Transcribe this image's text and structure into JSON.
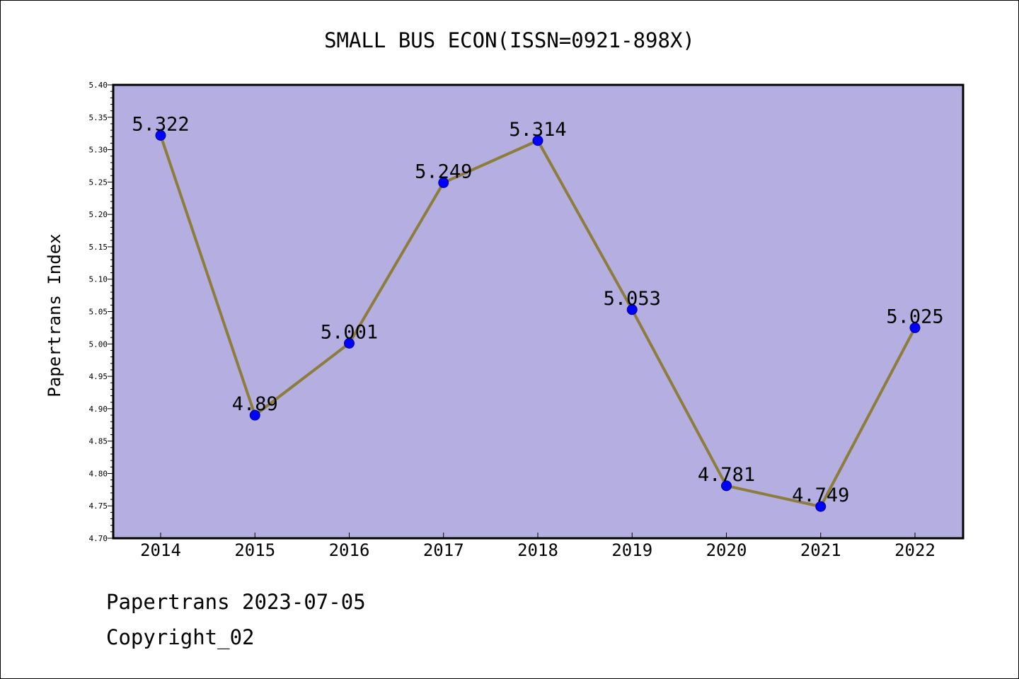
{
  "chart_data": {
    "type": "line",
    "title": "SMALL BUS ECON(ISSN=0921-898X)",
    "xlabel": "",
    "ylabel": "Papertrans Index",
    "categories": [
      "2014",
      "2015",
      "2016",
      "2017",
      "2018",
      "2019",
      "2020",
      "2021",
      "2022"
    ],
    "series": [
      {
        "values": [
          5.322,
          4.89,
          5.001,
          5.249,
          5.314,
          5.053,
          4.781,
          4.749,
          5.025
        ]
      }
    ],
    "data_labels": [
      "5.322",
      "4.89",
      "5.001",
      "5.249",
      "5.314",
      "5.053",
      "4.781",
      "4.749",
      "5.025"
    ],
    "ylim": [
      4.7,
      5.4
    ],
    "yticks": [
      "4.70",
      "4.75",
      "4.80",
      "4.85",
      "4.90",
      "4.95",
      "5.00",
      "5.05",
      "5.10",
      "5.15",
      "5.20",
      "5.25",
      "5.30",
      "5.35",
      "5.40"
    ],
    "grid": false,
    "colors": {
      "plot_background": "#b5aee0",
      "line": "#8c7d3c",
      "marker": "#0000ff"
    }
  },
  "footer": {
    "line1": "Papertrans 2023-07-05",
    "line2": "Copyright_02"
  }
}
